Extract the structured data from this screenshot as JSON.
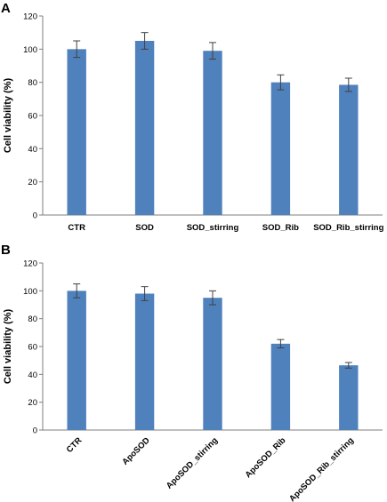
{
  "chart_data": [
    {
      "type": "bar",
      "panel": "A",
      "title": "",
      "xlabel": "",
      "ylabel": "Cell viability (%)",
      "ylim": [
        0,
        120
      ],
      "yticks": [
        "0",
        "20",
        "40",
        "60",
        "80",
        "100",
        "120"
      ],
      "categories": [
        "CTR",
        "SOD",
        "SOD_stirring",
        "SOD_Rib",
        "SOD_Rib_stirring"
      ],
      "values": [
        100,
        105,
        99,
        80,
        78.5
      ],
      "errors": [
        5,
        5,
        5,
        4.5,
        4
      ],
      "bar_color": "#4f81bd",
      "label_rotation": 0,
      "grid": false,
      "legend": "none"
    },
    {
      "type": "bar",
      "panel": "B",
      "title": "",
      "xlabel": "",
      "ylabel": "Cell viability (%)",
      "ylim": [
        0,
        120
      ],
      "yticks": [
        "0",
        "20",
        "40",
        "60",
        "80",
        "100",
        "120"
      ],
      "categories": [
        "CTR",
        "ApoSOD",
        "ApoSOD_stirring",
        "ApoSOD_Rib",
        "ApoSOD_Rib_stirring"
      ],
      "values": [
        100,
        98,
        95,
        62,
        46.5
      ],
      "errors": [
        5,
        5,
        5,
        3,
        2
      ],
      "bar_color": "#4f81bd",
      "label_rotation": -45,
      "grid": false,
      "legend": "none"
    }
  ]
}
